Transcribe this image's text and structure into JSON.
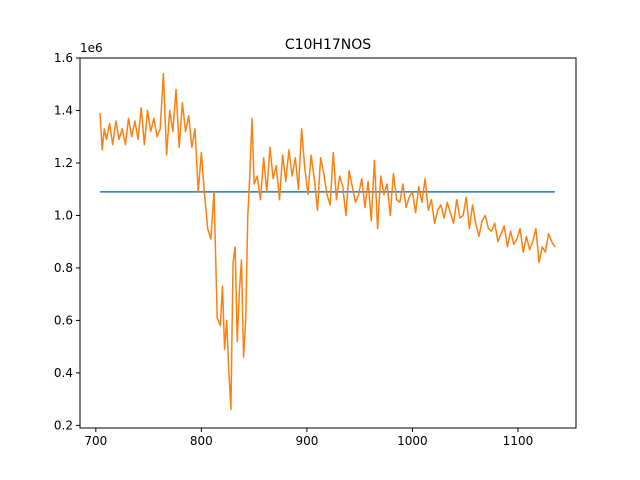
{
  "chart_data": {
    "type": "line",
    "title": "C10H17NOS",
    "xlabel": "",
    "ylabel": "",
    "y_offset_label": "1e6",
    "xlim": [
      685,
      1155
    ],
    "ylim": [
      0.19,
      1.6
    ],
    "x_ticks": [
      700,
      800,
      900,
      1000,
      1100
    ],
    "y_ticks": [
      0.2,
      0.4,
      0.6,
      0.8,
      1.0,
      1.2,
      1.4,
      1.6
    ],
    "y_tick_labels": [
      "0.2",
      "0.4",
      "0.6",
      "0.8",
      "1.0",
      "1.2",
      "1.4",
      "1.6"
    ],
    "grid": false,
    "legend": "none",
    "series": [
      {
        "color": "#1f77b4",
        "x": [
          704,
          1135
        ],
        "y": [
          1.09,
          1.09
        ]
      },
      {
        "color": "#ff7f0e",
        "x": [
          704,
          706,
          708,
          710,
          713,
          716,
          719,
          722,
          725,
          728,
          731,
          734,
          737,
          740,
          743,
          746,
          749,
          752,
          755,
          758,
          761,
          764,
          767,
          770,
          773,
          776,
          779,
          782,
          785,
          788,
          791,
          794,
          797,
          800,
          803,
          806,
          809,
          812,
          815,
          818,
          820,
          822,
          824,
          826,
          828,
          830,
          832,
          834,
          836,
          838,
          840,
          842,
          844,
          846,
          848,
          850,
          853,
          856,
          859,
          862,
          865,
          868,
          871,
          874,
          877,
          880,
          883,
          886,
          889,
          892,
          895,
          898,
          901,
          904,
          907,
          910,
          913,
          916,
          919,
          922,
          925,
          928,
          931,
          934,
          937,
          940,
          943,
          946,
          949,
          952,
          955,
          958,
          961,
          964,
          967,
          970,
          973,
          976,
          979,
          982,
          985,
          988,
          991,
          994,
          997,
          1000,
          1003,
          1006,
          1009,
          1012,
          1015,
          1018,
          1021,
          1024,
          1027,
          1030,
          1033,
          1036,
          1039,
          1042,
          1045,
          1048,
          1051,
          1054,
          1057,
          1060,
          1063,
          1066,
          1069,
          1072,
          1075,
          1078,
          1081,
          1084,
          1087,
          1090,
          1093,
          1096,
          1099,
          1102,
          1105,
          1108,
          1111,
          1114,
          1117,
          1120,
          1123,
          1126,
          1129,
          1132,
          1135
        ],
        "y": [
          1.39,
          1.25,
          1.33,
          1.29,
          1.35,
          1.27,
          1.36,
          1.29,
          1.33,
          1.27,
          1.37,
          1.3,
          1.36,
          1.29,
          1.41,
          1.27,
          1.4,
          1.32,
          1.37,
          1.3,
          1.33,
          1.54,
          1.23,
          1.4,
          1.32,
          1.48,
          1.26,
          1.43,
          1.32,
          1.38,
          1.26,
          1.33,
          1.09,
          1.24,
          1.08,
          0.95,
          0.91,
          1.09,
          0.61,
          0.58,
          0.73,
          0.49,
          0.6,
          0.41,
          0.26,
          0.82,
          0.88,
          0.52,
          0.71,
          0.83,
          0.46,
          0.6,
          1.0,
          1.16,
          1.37,
          1.12,
          1.15,
          1.06,
          1.22,
          1.09,
          1.26,
          1.14,
          1.19,
          1.06,
          1.23,
          1.13,
          1.25,
          1.15,
          1.22,
          1.1,
          1.33,
          1.18,
          1.08,
          1.23,
          1.14,
          1.02,
          1.22,
          1.16,
          1.08,
          1.04,
          1.24,
          1.06,
          1.15,
          1.11,
          1.0,
          1.17,
          1.11,
          1.05,
          1.08,
          1.14,
          1.03,
          1.13,
          0.98,
          1.21,
          0.95,
          1.15,
          1.08,
          1.12,
          1.0,
          1.16,
          1.06,
          1.05,
          1.12,
          1.03,
          1.07,
          1.09,
          1.01,
          1.11,
          1.05,
          1.14,
          1.02,
          1.06,
          0.97,
          1.02,
          1.04,
          0.99,
          1.05,
          1.01,
          0.97,
          1.06,
          0.99,
          1.0,
          1.07,
          0.95,
          1.04,
          0.97,
          0.92,
          0.98,
          1.0,
          0.95,
          0.94,
          0.97,
          0.9,
          0.93,
          0.96,
          0.88,
          0.94,
          0.89,
          0.91,
          0.95,
          0.86,
          0.92,
          0.87,
          0.9,
          0.95,
          0.82,
          0.88,
          0.86,
          0.93,
          0.9,
          0.88
        ]
      }
    ]
  }
}
